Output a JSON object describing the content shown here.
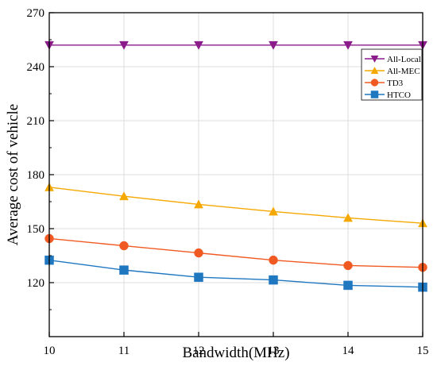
{
  "chart_data": {
    "type": "line",
    "title": "",
    "xlabel": "Bandwidth(MHz)",
    "ylabel": "Average cost of vehicle",
    "x": [
      10,
      11,
      12,
      13,
      14,
      15
    ],
    "xlim": [
      10,
      15
    ],
    "ylim": [
      90,
      270
    ],
    "xticks": [
      "10",
      "11",
      "12",
      "13",
      "14",
      "15"
    ],
    "yticks": [
      "120",
      "150",
      "180",
      "210",
      "240",
      "270"
    ],
    "grid": true,
    "legend_position": "top-right",
    "series": [
      {
        "name": "All-Local",
        "marker": "triangle-down",
        "color": "#8b1a8b",
        "values": [
          252,
          252,
          252,
          252,
          252,
          252
        ]
      },
      {
        "name": "All-MEC",
        "marker": "triangle-up",
        "color": "#f5a800",
        "values": [
          173,
          168,
          163.5,
          159.5,
          156,
          153
        ]
      },
      {
        "name": "TD3",
        "marker": "circle",
        "color": "#f05a22",
        "values": [
          144.5,
          140.5,
          136.5,
          132.5,
          129.5,
          128.5
        ]
      },
      {
        "name": "HTCO",
        "marker": "square",
        "color": "#1f77c0",
        "values": [
          132.5,
          127,
          123,
          121.5,
          118.5,
          117.5
        ]
      }
    ]
  }
}
